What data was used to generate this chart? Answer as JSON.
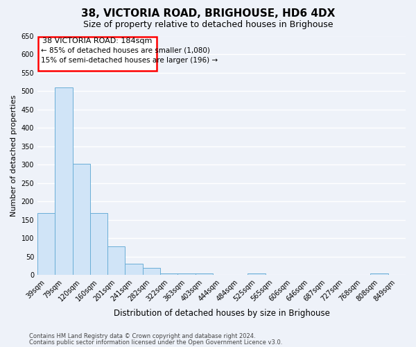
{
  "title1": "38, VICTORIA ROAD, BRIGHOUSE, HD6 4DX",
  "title2": "Size of property relative to detached houses in Brighouse",
  "xlabel": "Distribution of detached houses by size in Brighouse",
  "ylabel": "Number of detached properties",
  "categories": [
    "39sqm",
    "79sqm",
    "120sqm",
    "160sqm",
    "201sqm",
    "241sqm",
    "282sqm",
    "322sqm",
    "363sqm",
    "403sqm",
    "444sqm",
    "484sqm",
    "525sqm",
    "565sqm",
    "606sqm",
    "646sqm",
    "687sqm",
    "727sqm",
    "768sqm",
    "808sqm",
    "849sqm"
  ],
  "values": [
    168,
    510,
    302,
    168,
    78,
    30,
    20,
    5,
    5,
    5,
    0,
    0,
    5,
    0,
    0,
    0,
    0,
    0,
    0,
    5,
    0
  ],
  "bar_color": "#d0e4f7",
  "bar_edge_color": "#6aaed6",
  "ylim": [
    0,
    650
  ],
  "yticks": [
    0,
    50,
    100,
    150,
    200,
    250,
    300,
    350,
    400,
    450,
    500,
    550,
    600,
    650
  ],
  "annotation_line1": "38 VICTORIA ROAD: 184sqm",
  "annotation_line2": "← 85% of detached houses are smaller (1,080)",
  "annotation_line3": "15% of semi-detached houses are larger (196) →",
  "footer1": "Contains HM Land Registry data © Crown copyright and database right 2024.",
  "footer2": "Contains public sector information licensed under the Open Government Licence v3.0.",
  "background_color": "#eef2f9",
  "grid_color": "#ffffff",
  "title1_fontsize": 11,
  "title2_fontsize": 9,
  "ylabel_fontsize": 8,
  "xlabel_fontsize": 8.5,
  "tick_fontsize": 7,
  "footer_fontsize": 6
}
